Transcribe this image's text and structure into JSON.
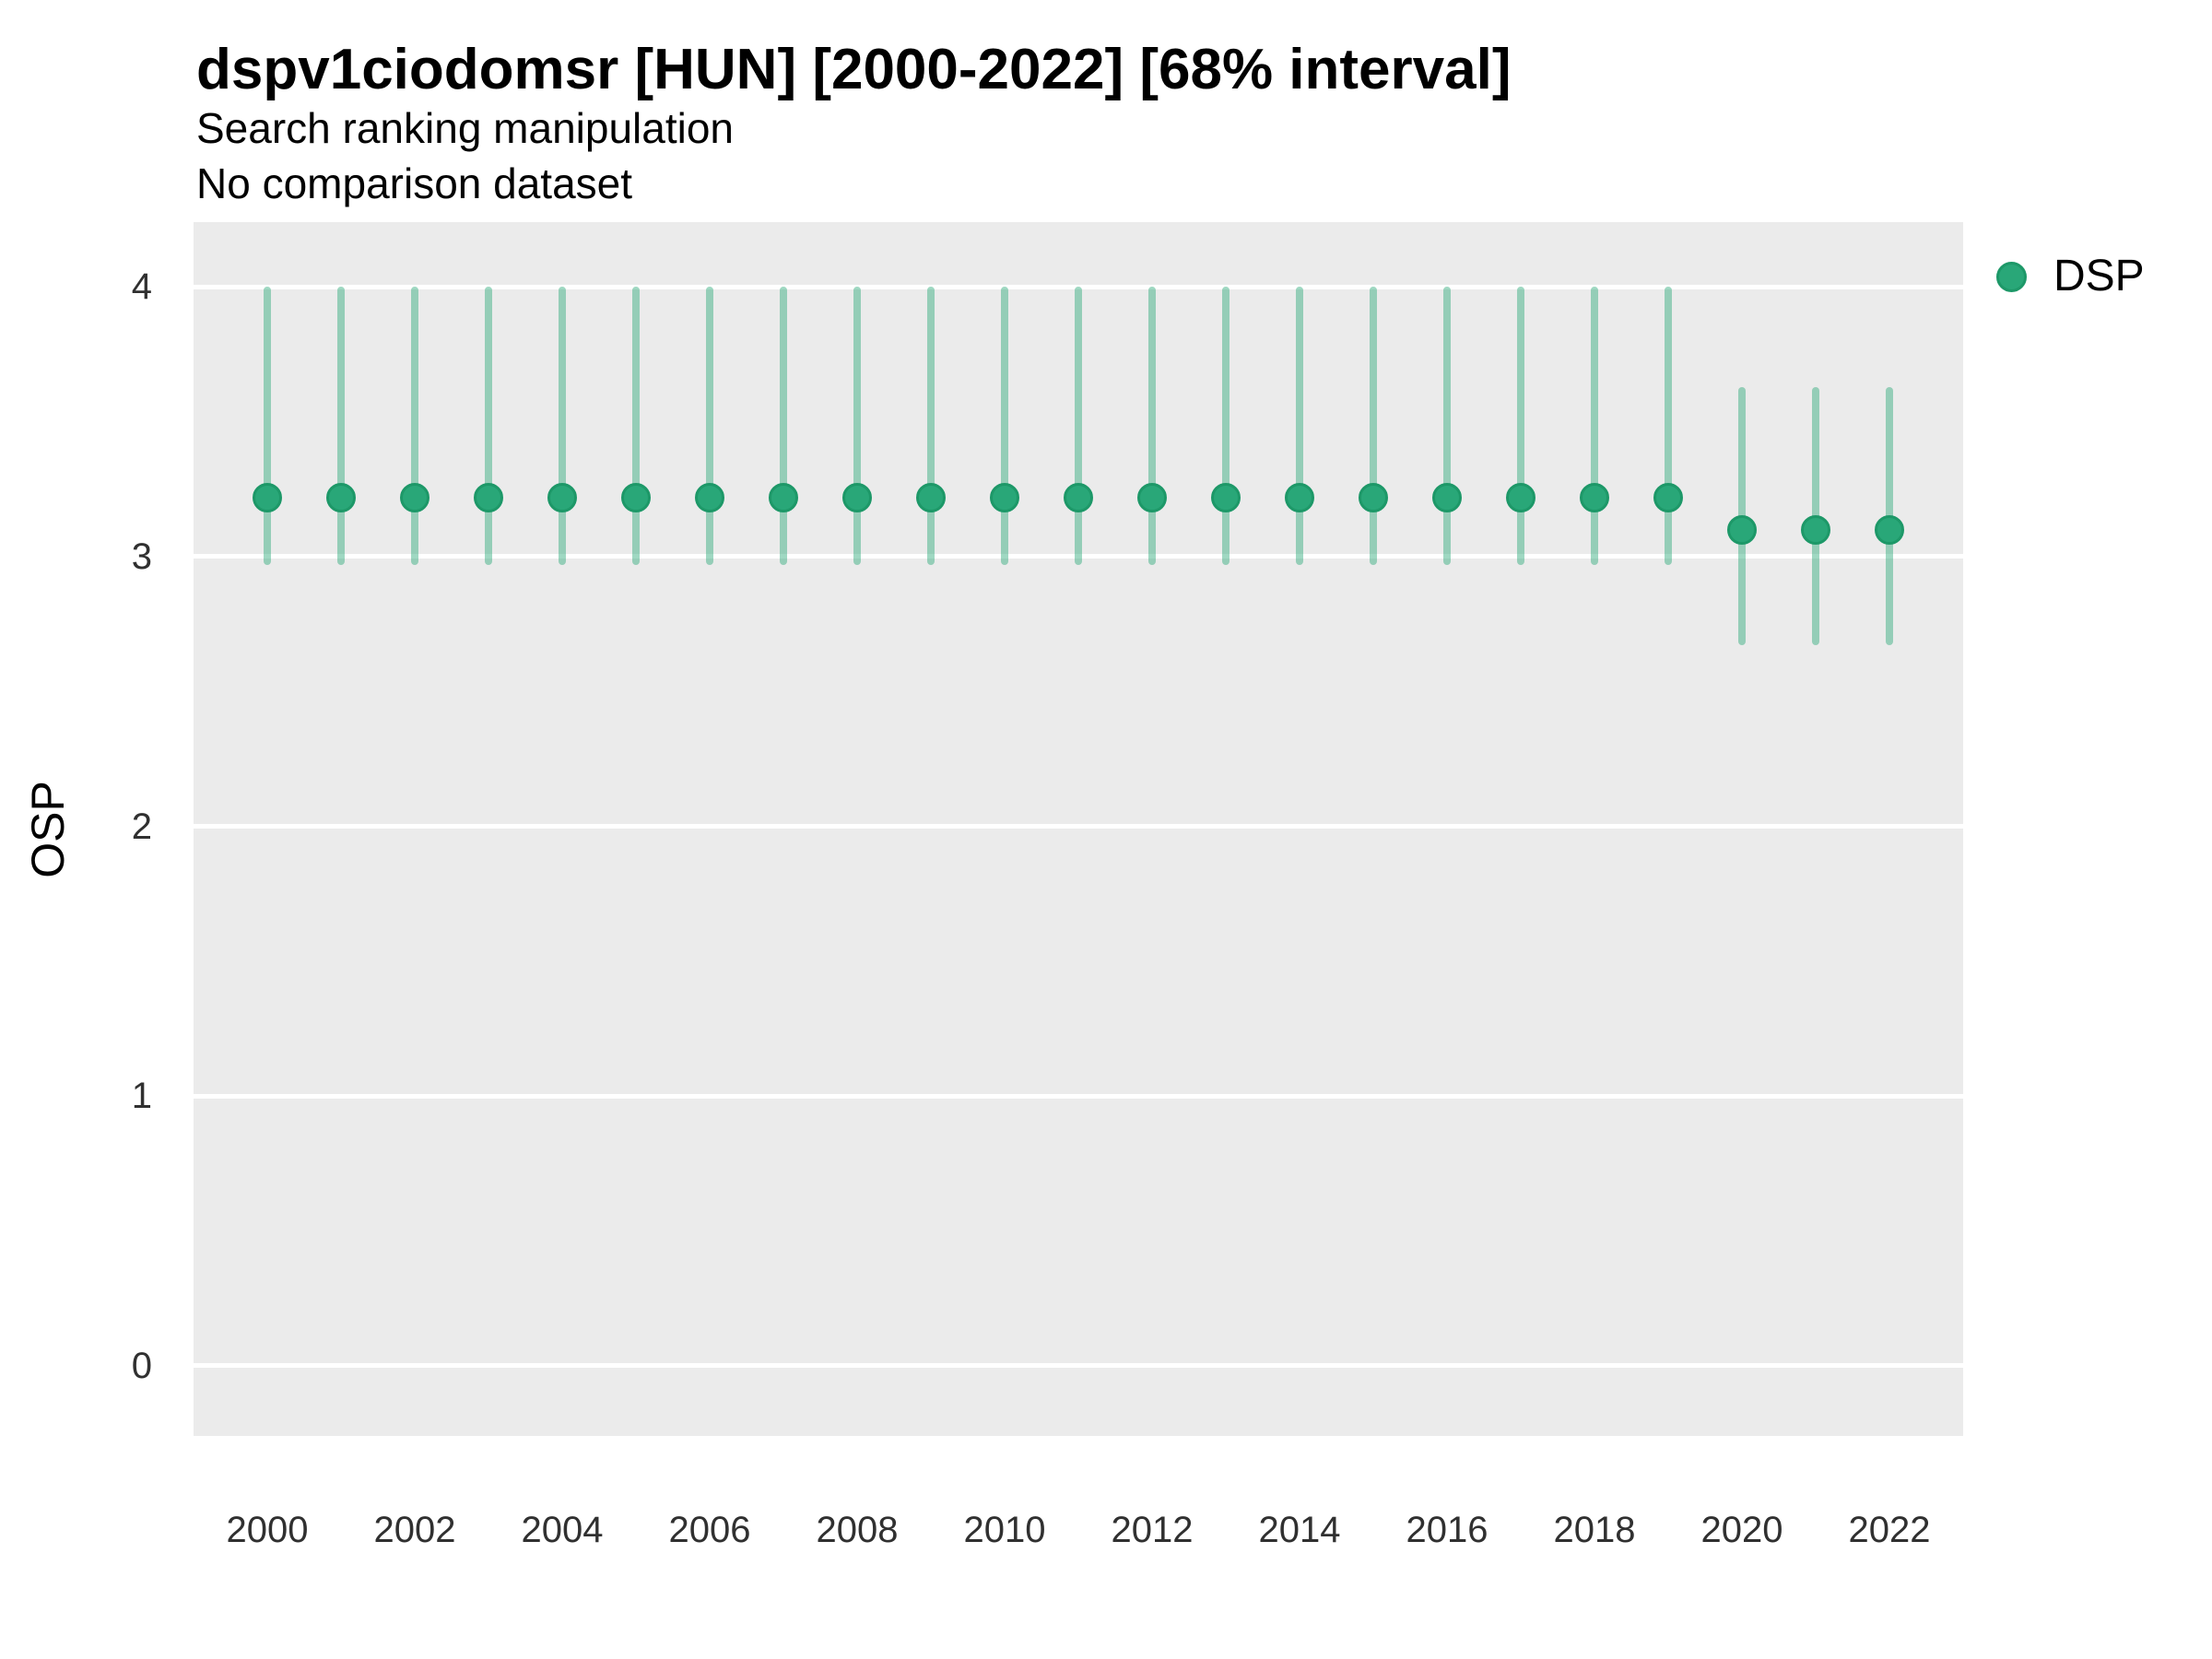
{
  "chart_data": {
    "type": "scatter",
    "title": "dspv1ciodomsr [HUN] [2000-2022] [68% interval]",
    "subtitle": "Search ranking manipulation",
    "note": "No comparison dataset",
    "xlabel": "",
    "ylabel": "OSP",
    "xlim": [
      1999,
      2023
    ],
    "ylim": [
      -0.26,
      4.24
    ],
    "xticks": [
      2000,
      2002,
      2004,
      2006,
      2008,
      2010,
      2012,
      2014,
      2016,
      2018,
      2020,
      2022
    ],
    "yticks": [
      0,
      1,
      2,
      3,
      4
    ],
    "grid": "major-horizontal-only",
    "legend_position": "right",
    "interval_label": "68% interval",
    "series": [
      {
        "name": "DSP",
        "points": [
          {
            "year": 2000,
            "mid": 3.22,
            "lo": 2.97,
            "hi": 4.0
          },
          {
            "year": 2001,
            "mid": 3.22,
            "lo": 2.97,
            "hi": 4.0
          },
          {
            "year": 2002,
            "mid": 3.22,
            "lo": 2.97,
            "hi": 4.0
          },
          {
            "year": 2003,
            "mid": 3.22,
            "lo": 2.97,
            "hi": 4.0
          },
          {
            "year": 2004,
            "mid": 3.22,
            "lo": 2.97,
            "hi": 4.0
          },
          {
            "year": 2005,
            "mid": 3.22,
            "lo": 2.97,
            "hi": 4.0
          },
          {
            "year": 2006,
            "mid": 3.22,
            "lo": 2.97,
            "hi": 4.0
          },
          {
            "year": 2007,
            "mid": 3.22,
            "lo": 2.97,
            "hi": 4.0
          },
          {
            "year": 2008,
            "mid": 3.22,
            "lo": 2.97,
            "hi": 4.0
          },
          {
            "year": 2009,
            "mid": 3.22,
            "lo": 2.97,
            "hi": 4.0
          },
          {
            "year": 2010,
            "mid": 3.22,
            "lo": 2.97,
            "hi": 4.0
          },
          {
            "year": 2011,
            "mid": 3.22,
            "lo": 2.97,
            "hi": 4.0
          },
          {
            "year": 2012,
            "mid": 3.22,
            "lo": 2.97,
            "hi": 4.0
          },
          {
            "year": 2013,
            "mid": 3.22,
            "lo": 2.97,
            "hi": 4.0
          },
          {
            "year": 2014,
            "mid": 3.22,
            "lo": 2.97,
            "hi": 4.0
          },
          {
            "year": 2015,
            "mid": 3.22,
            "lo": 2.97,
            "hi": 4.0
          },
          {
            "year": 2016,
            "mid": 3.22,
            "lo": 2.97,
            "hi": 4.0
          },
          {
            "year": 2017,
            "mid": 3.22,
            "lo": 2.97,
            "hi": 4.0
          },
          {
            "year": 2018,
            "mid": 3.22,
            "lo": 2.97,
            "hi": 4.0
          },
          {
            "year": 2019,
            "mid": 3.22,
            "lo": 2.97,
            "hi": 4.0
          },
          {
            "year": 2020,
            "mid": 3.1,
            "lo": 2.67,
            "hi": 3.63
          },
          {
            "year": 2021,
            "mid": 3.1,
            "lo": 2.67,
            "hi": 3.63
          },
          {
            "year": 2022,
            "mid": 3.1,
            "lo": 2.67,
            "hi": 3.63
          }
        ]
      }
    ],
    "colors": {
      "point_fill": "#29a778",
      "point_stroke": "#1d9868",
      "interval_bar": "rgba(42,168,120,0.45)",
      "panel_background": "#ebebeb",
      "gridline": "#ffffff"
    }
  }
}
